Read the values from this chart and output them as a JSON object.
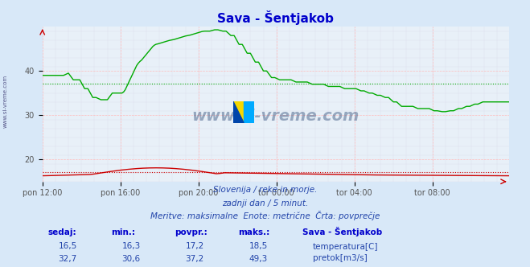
{
  "title": "Sava - Šentjakob",
  "background_color": "#d8e8f8",
  "plot_bg_color": "#e8f0f8",
  "grid_color_major": "#ffaaaa",
  "grid_color_minor": "#ddddee",
  "x_labels": [
    "pon 12:00",
    "pon 16:00",
    "pon 20:00",
    "tor 00:00",
    "tor 04:00",
    "tor 08:00"
  ],
  "x_ticks": [
    0,
    48,
    96,
    144,
    192,
    240
  ],
  "total_points": 288,
  "ylim": [
    15,
    50
  ],
  "yticks": [
    20,
    30,
    40
  ],
  "temp_avg": 17.2,
  "flow_avg": 37.2,
  "subtitle1": "Slovenija / reke in morje.",
  "subtitle2": "zadnji dan / 5 minut.",
  "subtitle3": "Meritve: maksimalne  Enote: metrične  Črta: povprečje",
  "table_headers": [
    "sedaj:",
    "min.:",
    "povpr.:",
    "maks.:"
  ],
  "temp_row": [
    "16,5",
    "16,3",
    "17,2",
    "18,5"
  ],
  "flow_row": [
    "32,7",
    "30,6",
    "37,2",
    "49,3"
  ],
  "legend_title": "Sava - Šentjakob",
  "legend_temp": "temperatura[C]",
  "legend_flow": "pretok[m3/s]",
  "temp_color": "#cc0000",
  "flow_color": "#00aa00",
  "avg_temp_color": "#cc0000",
  "avg_flow_color": "#00aa00",
  "text_color": "#0000cc",
  "title_color": "#0000cc",
  "watermark": "www.si-vreme.com",
  "left_label": "www.si-vreme.com"
}
